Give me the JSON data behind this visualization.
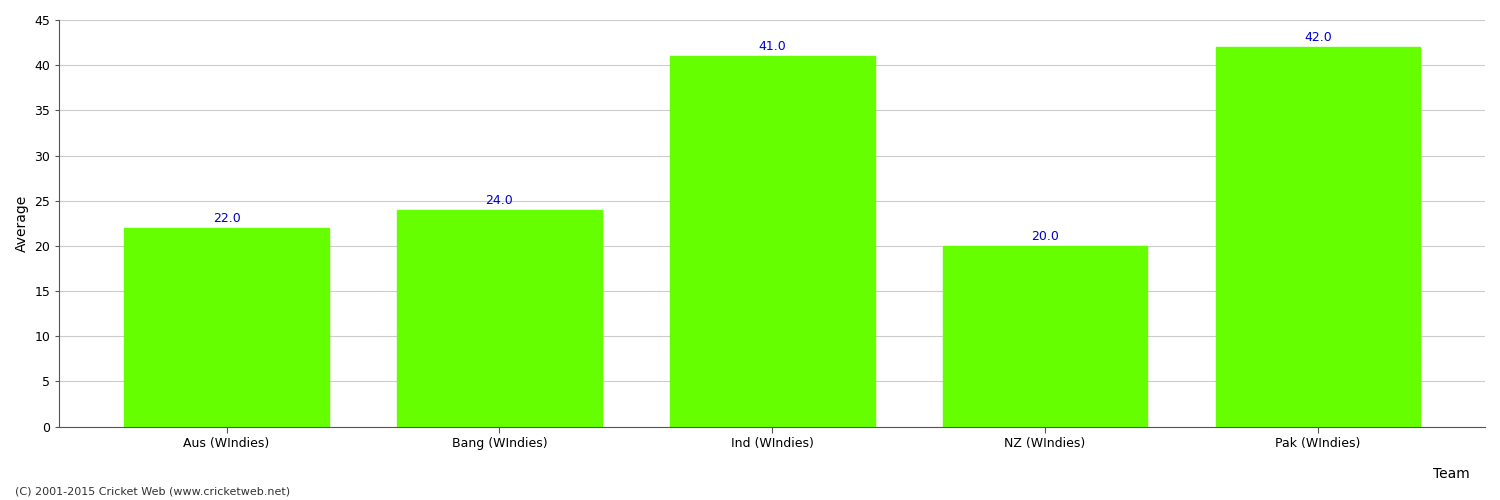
{
  "categories": [
    "Aus (WIndies)",
    "Bang (WIndies)",
    "Ind (WIndies)",
    "NZ (WIndies)",
    "Pak (WIndies)"
  ],
  "values": [
    22.0,
    24.0,
    41.0,
    20.0,
    42.0
  ],
  "bar_color": "#66ff00",
  "bar_edge_color": "#66ff00",
  "label_color": "#0000cc",
  "xlabel": "Team",
  "ylabel": "Average",
  "ylim": [
    0,
    45
  ],
  "yticks": [
    0,
    5,
    10,
    15,
    20,
    25,
    30,
    35,
    40,
    45
  ],
  "grid_color": "#cccccc",
  "bg_color": "#ffffff",
  "footer": "(C) 2001-2015 Cricket Web (www.cricketweb.net)",
  "label_fontsize": 9,
  "axis_label_fontsize": 10,
  "tick_fontsize": 9,
  "footer_fontsize": 8
}
